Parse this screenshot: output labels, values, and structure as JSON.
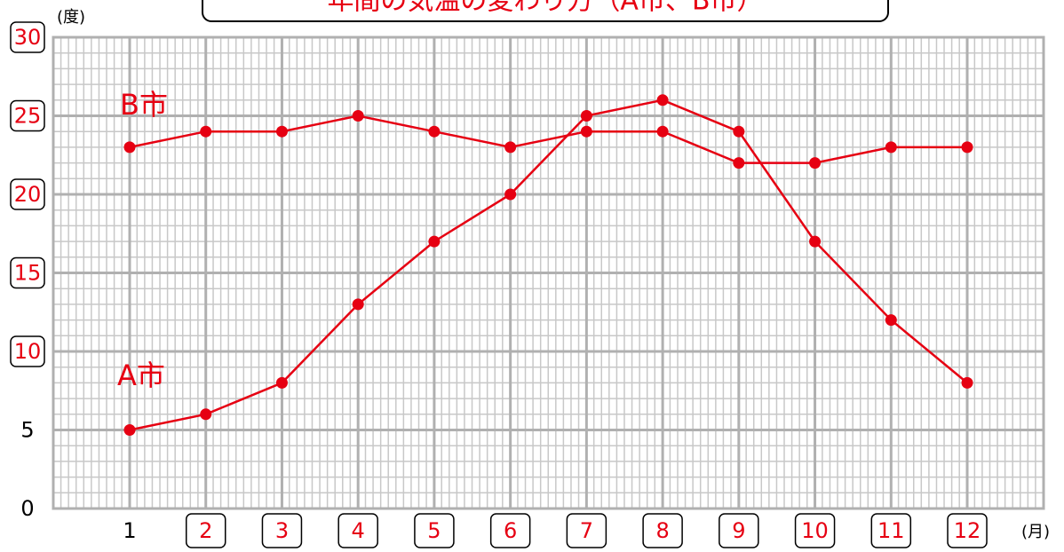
{
  "chart_data": {
    "type": "line",
    "title": "年間の気温の変わり方（A市、B市）",
    "y_unit": "(度)",
    "x_unit": "(月)",
    "categories": [
      "1",
      "2",
      "3",
      "4",
      "5",
      "6",
      "7",
      "8",
      "9",
      "10",
      "11",
      "12"
    ],
    "series": [
      {
        "name": "A市",
        "color": "#e60012",
        "values": [
          5,
          6,
          8,
          13,
          17,
          20,
          25,
          26,
          24,
          17,
          12,
          8
        ]
      },
      {
        "name": "B市",
        "color": "#e60012",
        "values": [
          23,
          24,
          24,
          25,
          24,
          23,
          24,
          24,
          22,
          22,
          23,
          23
        ]
      }
    ],
    "ylim": [
      0,
      30
    ],
    "yticks": [
      0,
      5,
      10,
      15,
      20,
      25,
      30
    ],
    "grid": true
  }
}
